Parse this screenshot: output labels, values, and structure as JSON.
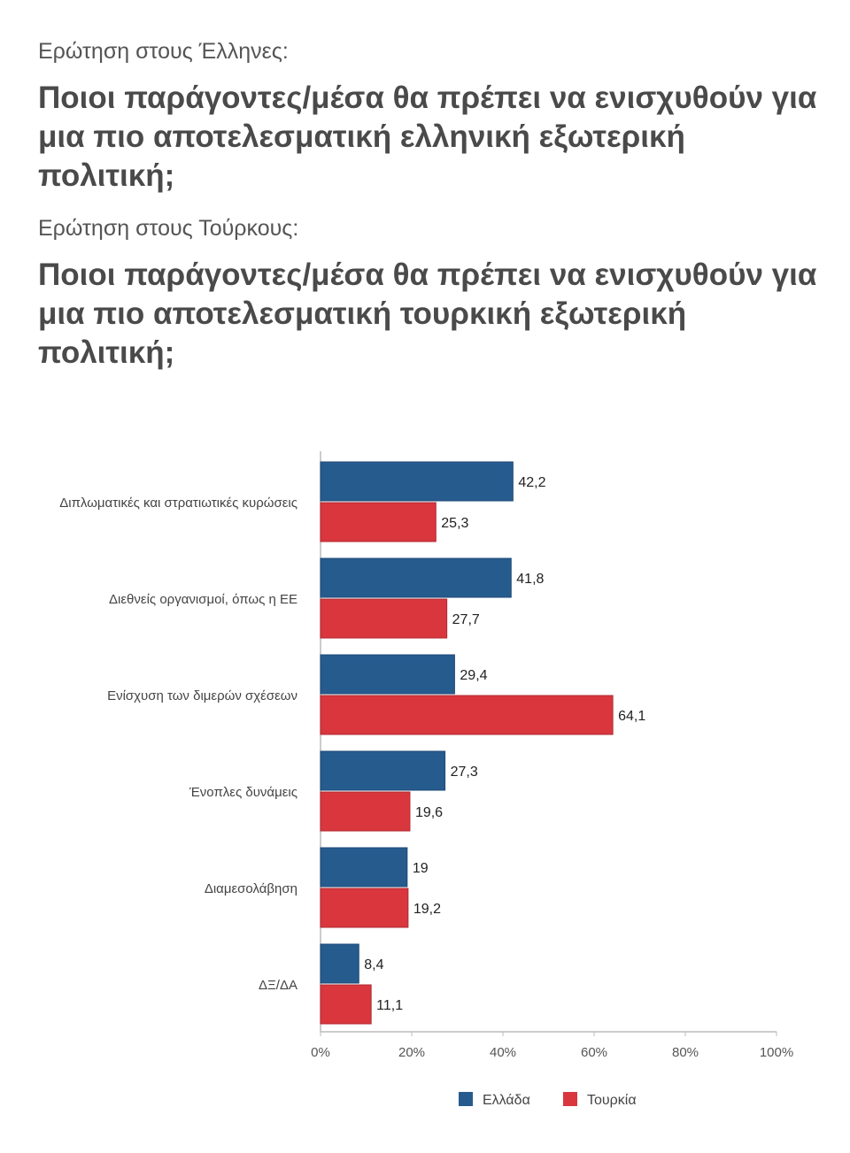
{
  "header": {
    "greek_question_label": "Ερώτηση στους Έλληνες:",
    "greek_question": "Ποιοι παράγοντες/μέσα θα πρέπει να  ενισχυθούν για μια πιο αποτελεσματική ελληνική εξωτερική πολιτική;",
    "turkish_question_label": "Ερώτηση στους Τούρκους:",
    "turkish_question": "Ποιοι παράγοντες/μέσα θα πρέπει να  ενισχυθούν για μια πιο αποτελεσματική τουρκική εξωτερική πολιτική;"
  },
  "chart_data": {
    "type": "bar",
    "orientation": "horizontal",
    "categories": [
      "Διπλωματικές και στρατιωτικές κυρώσεις",
      "Διεθνείς οργανισμοί, όπως η ΕΕ",
      "Ενίσχυση των διμερών σχέσεων",
      "Ένοπλες δυνάμεις",
      "Διαμεσολάβηση",
      "ΔΞ/ΔΑ"
    ],
    "series": [
      {
        "name": "Ελλάδα",
        "color": "#265b8e",
        "values": [
          42.2,
          41.8,
          29.4,
          27.3,
          19,
          8.4
        ],
        "labels": [
          "42,2",
          "41,8",
          "29,4",
          "27,3",
          "19",
          "8,4"
        ]
      },
      {
        "name": "Τουρκία",
        "color": "#d9363e",
        "values": [
          25.3,
          27.7,
          64.1,
          19.6,
          19.2,
          11.1
        ],
        "labels": [
          "25,3",
          "27,7",
          "64,1",
          "19,6",
          "19,2",
          "11,1"
        ]
      }
    ],
    "xlim": [
      0,
      100
    ],
    "xticks": [
      "0%",
      "20%",
      "40%",
      "60%",
      "80%",
      "100%"
    ],
    "legend_position": "bottom",
    "grid": false
  }
}
